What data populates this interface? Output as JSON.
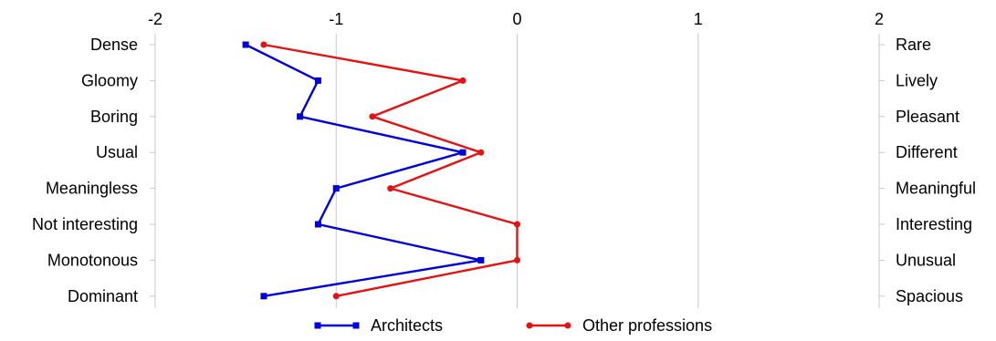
{
  "chart_data": {
    "type": "line",
    "orientation": "horizontal",
    "xlim": [
      -2,
      2
    ],
    "x_ticks": [
      -2,
      -1,
      0,
      1,
      2
    ],
    "x_tick_labels": [
      "-2",
      "-1",
      "0",
      "1",
      "2"
    ],
    "grid": true,
    "legend_position": "bottom",
    "left_labels": [
      "Dense",
      "Gloomy",
      "Boring",
      "Usual",
      "Meaningless",
      "Not interesting",
      "Monotonous",
      "Dominant"
    ],
    "right_labels": [
      "Rare",
      "Lively",
      "Pleasant",
      "Different",
      "Meaningful",
      "Interesting",
      "Unusual",
      "Spacious"
    ],
    "series": [
      {
        "name": "Architects",
        "color": "#0000dd",
        "marker": "square",
        "values": [
          -1.5,
          -1.1,
          -1.2,
          -0.3,
          -1.0,
          -1.1,
          -0.2,
          -1.4
        ]
      },
      {
        "name": "Other professions",
        "color": "#e81010",
        "marker": "circle",
        "values": [
          -1.4,
          -0.3,
          -0.8,
          -0.2,
          -0.7,
          0.0,
          0.0,
          -1.0
        ]
      }
    ]
  }
}
